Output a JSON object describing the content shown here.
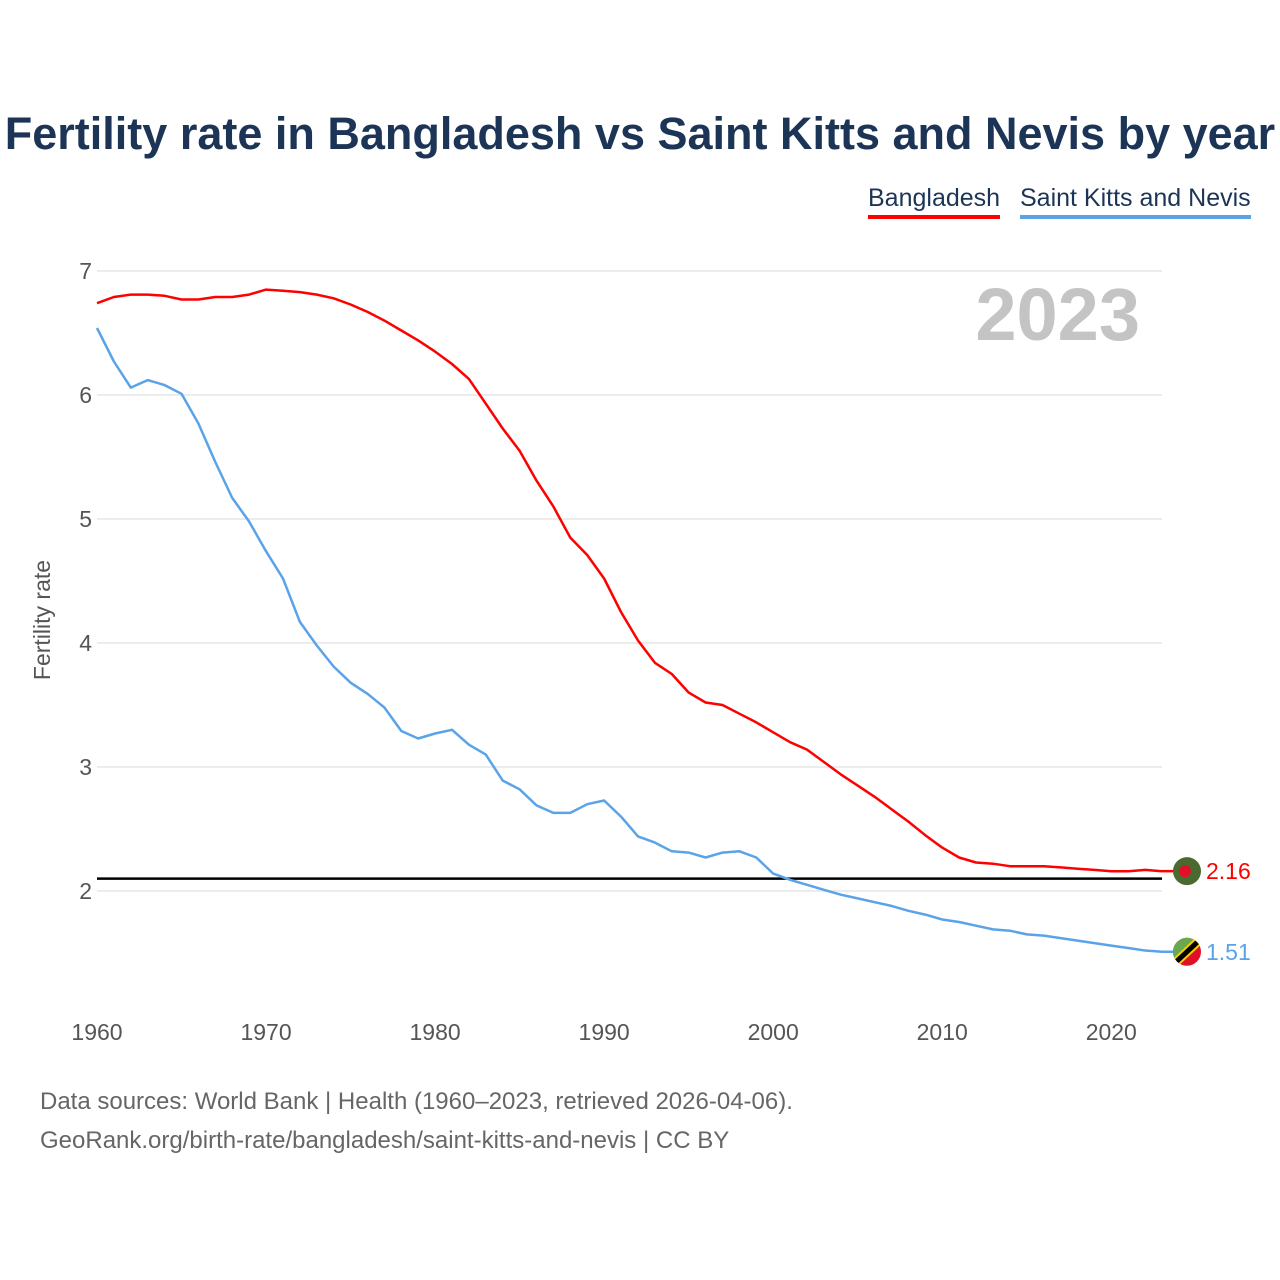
{
  "chart_data": {
    "type": "line",
    "title": "Fertility rate in Bangladesh vs Saint Kitts and Nevis by year",
    "xlabel": "",
    "ylabel": "Fertility rate",
    "xlim": [
      1960,
      2023
    ],
    "ylim": [
      1.1,
      7.0
    ],
    "x_ticks": [
      "1960",
      "1970",
      "1980",
      "1990",
      "2000",
      "2010",
      "2020"
    ],
    "y_ticks": [
      "2",
      "3",
      "4",
      "5",
      "6",
      "7"
    ],
    "grid": true,
    "legend_position": "top-right",
    "year_label": "2023",
    "reference_line": {
      "value": 2.1,
      "color": "#000000"
    },
    "x": [
      1960,
      1961,
      1962,
      1963,
      1964,
      1965,
      1966,
      1967,
      1968,
      1969,
      1970,
      1971,
      1972,
      1973,
      1974,
      1975,
      1976,
      1977,
      1978,
      1979,
      1980,
      1981,
      1982,
      1983,
      1984,
      1985,
      1986,
      1987,
      1988,
      1989,
      1990,
      1991,
      1992,
      1993,
      1994,
      1995,
      1996,
      1997,
      1998,
      1999,
      2000,
      2001,
      2002,
      2003,
      2004,
      2005,
      2006,
      2007,
      2008,
      2009,
      2010,
      2011,
      2012,
      2013,
      2014,
      2015,
      2016,
      2017,
      2018,
      2019,
      2020,
      2021,
      2022,
      2023
    ],
    "series": [
      {
        "name": "Bangladesh",
        "color": "#ff0000",
        "end_label": "2.16",
        "values": [
          6.74,
          6.79,
          6.81,
          6.81,
          6.8,
          6.77,
          6.77,
          6.79,
          6.79,
          6.81,
          6.85,
          6.84,
          6.83,
          6.81,
          6.78,
          6.73,
          6.67,
          6.6,
          6.52,
          6.44,
          6.35,
          6.25,
          6.13,
          5.93,
          5.73,
          5.55,
          5.31,
          5.1,
          4.85,
          4.71,
          4.52,
          4.25,
          4.02,
          3.84,
          3.75,
          3.6,
          3.52,
          3.5,
          3.43,
          3.36,
          3.28,
          3.2,
          3.14,
          3.04,
          2.94,
          2.85,
          2.76,
          2.66,
          2.56,
          2.45,
          2.35,
          2.27,
          2.23,
          2.22,
          2.2,
          2.2,
          2.2,
          2.19,
          2.18,
          2.17,
          2.16,
          2.16,
          2.17,
          2.16
        ]
      },
      {
        "name": "Saint Kitts and Nevis",
        "color": "#5aa3e8",
        "end_label": "1.51",
        "values": [
          6.54,
          6.27,
          6.06,
          6.12,
          6.08,
          6.01,
          5.77,
          5.46,
          5.17,
          4.98,
          4.74,
          4.52,
          4.17,
          3.98,
          3.81,
          3.68,
          3.59,
          3.48,
          3.29,
          3.23,
          3.27,
          3.3,
          3.18,
          3.1,
          2.89,
          2.82,
          2.69,
          2.63,
          2.63,
          2.7,
          2.73,
          2.6,
          2.44,
          2.39,
          2.32,
          2.31,
          2.27,
          2.31,
          2.32,
          2.27,
          2.14,
          2.09,
          2.05,
          2.01,
          1.97,
          1.94,
          1.91,
          1.88,
          1.84,
          1.81,
          1.77,
          1.75,
          1.72,
          1.69,
          1.68,
          1.65,
          1.64,
          1.62,
          1.6,
          1.58,
          1.56,
          1.54,
          1.52,
          1.51
        ]
      }
    ]
  },
  "footer": {
    "line1": "Data sources: World Bank | Health (1960–2023, retrieved 2026-04-06).",
    "line2": "GeoRank.org/birth-rate/bangladesh/saint-kitts-and-nevis | CC BY"
  }
}
